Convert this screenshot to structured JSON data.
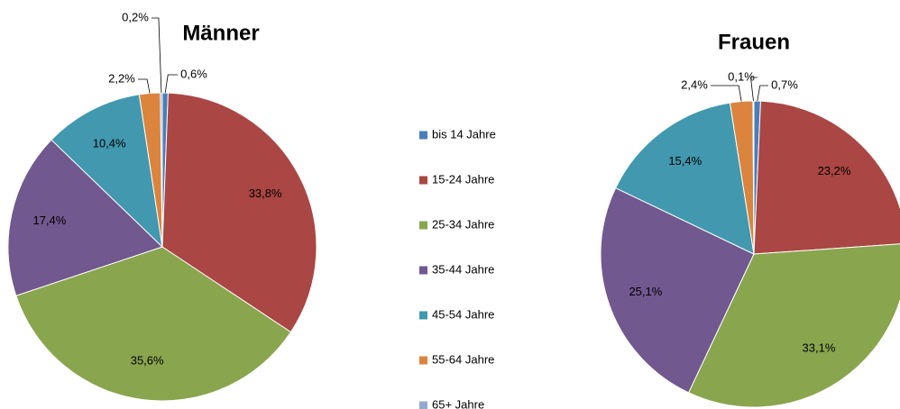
{
  "chart_data": [
    {
      "type": "pie",
      "title": "Männer",
      "categories": [
        "bis 14 Jahre",
        "15-24 Jahre",
        "25-34 Jahre",
        "35-44 Jahre",
        "45-54 Jahre",
        "55-64 Jahre",
        "65+ Jahre"
      ],
      "colors": [
        "#4a7ebb",
        "#aa4643",
        "#89a54e",
        "#71588f",
        "#4198af",
        "#db843d",
        "#93a9cf"
      ],
      "values": [
        0.6,
        33.8,
        35.6,
        17.4,
        10.4,
        2.2,
        0.2
      ],
      "value_labels": [
        "0,6%",
        "33,8%",
        "35,6%",
        "17,4%",
        "10,4%",
        "2,2%",
        "0,2%"
      ]
    },
    {
      "type": "pie",
      "title": "Frauen",
      "values": [
        0.7,
        23.2,
        33.1,
        25.1,
        15.4,
        2.4,
        0.1
      ],
      "value_labels": [
        "0,7%",
        "23,2%",
        "33,1%",
        "25,1%",
        "15,4%",
        "2,4%",
        "0,1%"
      ]
    }
  ]
}
